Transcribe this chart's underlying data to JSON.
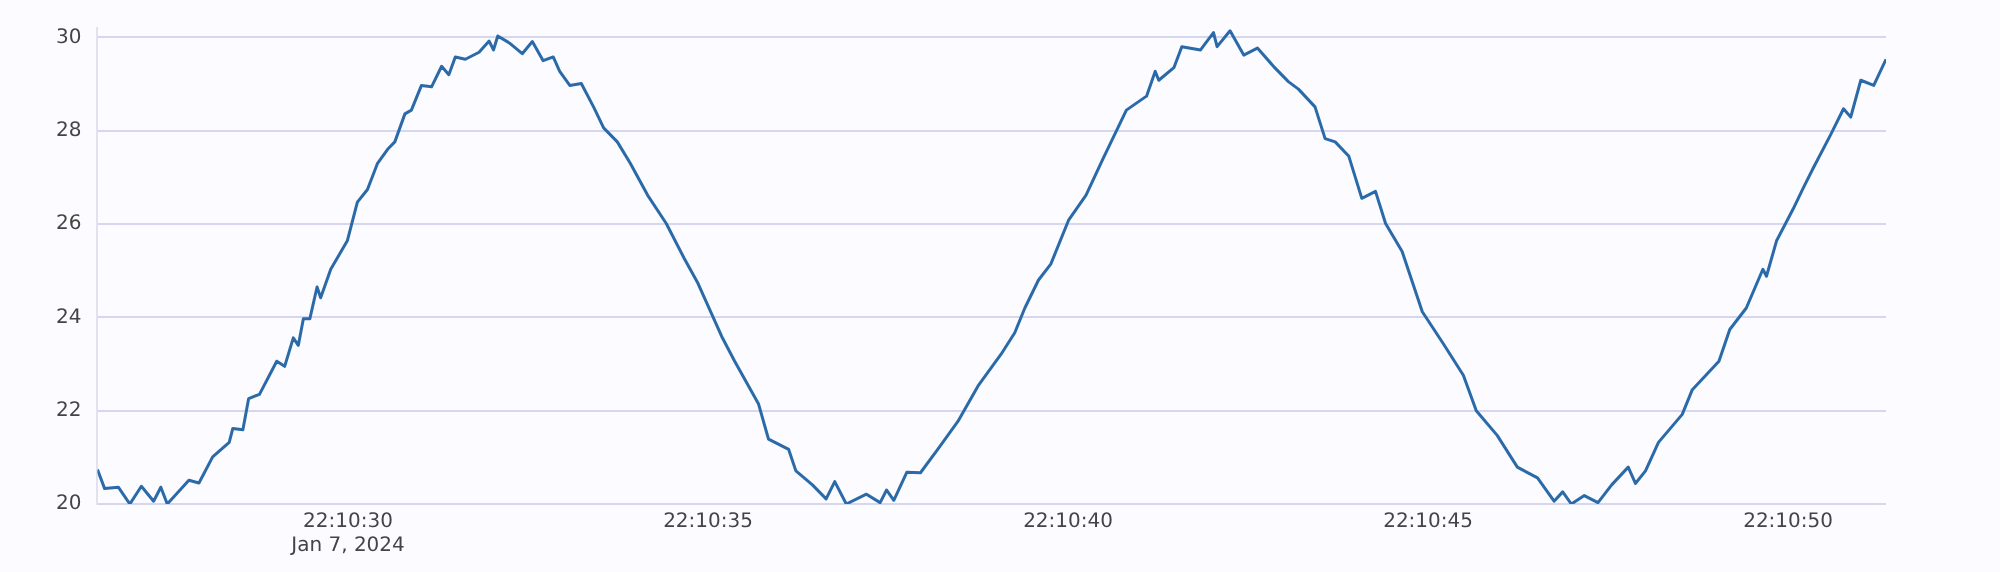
{
  "chart_data": {
    "type": "line",
    "grid": "y",
    "line_style": "solid",
    "marker": "none",
    "legend": false,
    "xlim": [
      "2024-01-07T22:10:26.52",
      "2024-01-07T22:10:51.36"
    ],
    "xticks": [
      {
        "value": "2024-01-07T22:10:30",
        "label": "22:10:30\nJan 7, 2024"
      },
      {
        "value": "2024-01-07T22:10:35",
        "label": "22:10:35"
      },
      {
        "value": "2024-01-07T22:10:40",
        "label": "22:10:40"
      },
      {
        "value": "2024-01-07T22:10:45",
        "label": "22:10:45"
      },
      {
        "value": "2024-01-07T22:10:50",
        "label": "22:10:50"
      }
    ],
    "ylim": [
      20,
      30.2
    ],
    "yticks": [
      20,
      22,
      24,
      26,
      28,
      30
    ],
    "x": [
      "2024-01-07T22:10:26.52",
      "2024-01-07T22:10:26.62",
      "2024-01-07T22:10:26.81",
      "2024-01-07T22:10:26.97",
      "2024-01-07T22:10:27.13",
      "2024-01-07T22:10:27.30",
      "2024-01-07T22:10:27.40",
      "2024-01-07T22:10:27.49",
      "2024-01-07T22:10:27.79",
      "2024-01-07T22:10:27.93",
      "2024-01-07T22:10:28.12",
      "2024-01-07T22:10:28.35",
      "2024-01-07T22:10:28.40",
      "2024-01-07T22:10:28.54",
      "2024-01-07T22:10:28.62",
      "2024-01-07T22:10:28.77",
      "2024-01-07T22:10:29.01",
      "2024-01-07T22:10:29.12",
      "2024-01-07T22:10:29.24",
      "2024-01-07T22:10:29.31",
      "2024-01-07T22:10:29.38",
      "2024-01-07T22:10:29.47",
      "2024-01-07T22:10:29.57",
      "2024-01-07T22:10:29.62",
      "2024-01-07T22:10:29.76",
      "2024-01-07T22:10:29.99",
      "2024-01-07T22:10:30.13",
      "2024-01-07T22:10:30.27",
      "2024-01-07T22:10:30.41",
      "2024-01-07T22:10:30.55",
      "2024-01-07T22:10:30.65",
      "2024-01-07T22:10:30.79",
      "2024-01-07T22:10:30.88",
      "2024-01-07T22:10:31.02",
      "2024-01-07T22:10:31.16",
      "2024-01-07T22:10:31.30",
      "2024-01-07T22:10:31.40",
      "2024-01-07T22:10:31.49",
      "2024-01-07T22:10:31.63",
      "2024-01-07T22:10:31.82",
      "2024-01-07T22:10:31.96",
      "2024-01-07T22:10:32.02",
      "2024-01-07T22:10:32.08",
      "2024-01-07T22:10:32.24",
      "2024-01-07T22:10:32.42",
      "2024-01-07T22:10:32.56",
      "2024-01-07T22:10:32.71",
      "2024-01-07T22:10:32.85",
      "2024-01-07T22:10:32.94",
      "2024-01-07T22:10:33.08",
      "2024-01-07T22:10:33.24",
      "2024-01-07T22:10:33.41",
      "2024-01-07T22:10:33.55",
      "2024-01-07T22:10:33.74",
      "2024-01-07T22:10:33.92",
      "2024-01-07T22:10:34.16",
      "2024-01-07T22:10:34.42",
      "2024-01-07T22:10:34.67",
      "2024-01-07T22:10:34.86",
      "2024-01-07T22:10:35.19",
      "2024-01-07T22:10:35.37",
      "2024-01-07T22:10:35.70",
      "2024-01-07T22:10:35.84",
      "2024-01-07T22:10:36.12",
      "2024-01-07T22:10:36.22",
      "2024-01-07T22:10:36.45",
      "2024-01-07T22:10:36.64",
      "2024-01-07T22:10:36.76",
      "2024-01-07T22:10:36.92",
      "2024-01-07T22:10:37.20",
      "2024-01-07T22:10:37.39",
      "2024-01-07T22:10:37.48",
      "2024-01-07T22:10:37.58",
      "2024-01-07T22:10:37.76",
      "2024-01-07T22:10:37.95",
      "2024-01-07T22:10:38.19",
      "2024-01-07T22:10:38.47",
      "2024-01-07T22:10:38.75",
      "2024-01-07T22:10:39.07",
      "2024-01-07T22:10:39.26",
      "2024-01-07T22:10:39.40",
      "2024-01-07T22:10:39.59",
      "2024-01-07T22:10:39.76",
      "2024-01-07T22:10:40.01",
      "2024-01-07T22:10:40.25",
      "2024-01-07T22:10:40.48",
      "2024-01-07T22:10:40.67",
      "2024-01-07T22:10:40.81",
      "2024-01-07T22:10:41.09",
      "2024-01-07T22:10:41.21",
      "2024-01-07T22:10:41.26",
      "2024-01-07T22:10:41.47",
      "2024-01-07T22:10:41.58",
      "2024-01-07T22:10:41.84",
      "2024-01-07T22:10:42.02",
      "2024-01-07T22:10:42.07",
      "2024-01-07T22:10:42.25",
      "2024-01-07T22:10:42.44",
      "2024-01-07T22:10:42.63",
      "2024-01-07T22:10:42.87",
      "2024-01-07T22:10:43.06",
      "2024-01-07T22:10:43.20",
      "2024-01-07T22:10:43.43",
      "2024-01-07T22:10:43.57",
      "2024-01-07T22:10:43.71",
      "2024-01-07T22:10:43.90",
      "2024-01-07T22:10:44.08",
      "2024-01-07T22:10:44.27",
      "2024-01-07T22:10:44.41",
      "2024-01-07T22:10:44.64",
      "2024-01-07T22:10:44.92",
      "2024-01-07T22:10:45.21",
      "2024-01-07T22:10:45.49",
      "2024-01-07T22:10:45.67",
      "2024-01-07T22:10:45.96",
      "2024-01-07T22:10:46.24",
      "2024-01-07T22:10:46.52",
      "2024-01-07T22:10:46.75",
      "2024-01-07T22:10:46.87",
      "2024-01-07T22:10:46.99",
      "2024-01-07T22:10:47.17",
      "2024-01-07T22:10:47.36",
      "2024-01-07T22:10:47.55",
      "2024-01-07T22:10:47.78",
      "2024-01-07T22:10:47.88",
      "2024-01-07T22:10:48.02",
      "2024-01-07T22:10:48.20",
      "2024-01-07T22:10:48.53",
      "2024-01-07T22:10:48.67",
      "2024-01-07T22:10:49.04",
      "2024-01-07T22:10:49.19",
      "2024-01-07T22:10:49.42",
      "2024-01-07T22:10:49.65",
      "2024-01-07T22:10:49.70",
      "2024-01-07T22:10:49.84",
      "2024-01-07T22:10:50.07",
      "2024-01-07T22:10:50.21",
      "2024-01-07T22:10:50.35",
      "2024-01-07T22:10:50.59",
      "2024-01-07T22:10:50.77",
      "2024-01-07T22:10:50.87",
      "2024-01-07T22:10:51.01",
      "2024-01-07T22:10:51.19",
      "2024-01-07T22:10:51.36"
    ],
    "series": [
      {
        "color": "#2a6aa8",
        "values": [
          20.74,
          20.33,
          20.36,
          20.0,
          20.38,
          20.06,
          20.36,
          20.0,
          20.51,
          20.45,
          21.01,
          21.32,
          21.62,
          21.59,
          22.26,
          22.35,
          23.06,
          22.95,
          23.56,
          23.4,
          23.97,
          23.97,
          24.65,
          24.42,
          25.03,
          25.64,
          26.47,
          26.74,
          27.3,
          27.6,
          27.76,
          28.36,
          28.44,
          28.97,
          28.94,
          29.38,
          29.2,
          29.58,
          29.53,
          29.68,
          29.92,
          29.73,
          30.03,
          29.88,
          29.65,
          29.91,
          29.5,
          29.58,
          29.27,
          28.97,
          29.01,
          28.51,
          28.06,
          27.76,
          27.3,
          26.62,
          26.01,
          25.26,
          24.73,
          23.59,
          23.06,
          22.15,
          21.39,
          21.17,
          20.71,
          20.41,
          20.11,
          20.48,
          20.0,
          20.21,
          20.03,
          20.3,
          20.08,
          20.68,
          20.67,
          21.17,
          21.77,
          22.53,
          23.21,
          23.67,
          24.2,
          24.8,
          25.14,
          26.09,
          26.62,
          27.38,
          27.99,
          28.44,
          28.74,
          29.27,
          29.08,
          29.35,
          29.8,
          29.73,
          30.1,
          29.8,
          30.14,
          29.62,
          29.77,
          29.35,
          29.05,
          28.89,
          28.51,
          27.83,
          27.76,
          27.45,
          26.55,
          26.7,
          26.01,
          25.41,
          24.12,
          23.44,
          22.76,
          22.0,
          21.47,
          20.79,
          20.56,
          20.06,
          20.26,
          20.0,
          20.18,
          20.03,
          20.41,
          20.79,
          20.44,
          20.71,
          21.32,
          21.92,
          22.45,
          23.06,
          23.74,
          24.2,
          25.03,
          24.88,
          25.64,
          26.32,
          26.77,
          27.2,
          27.91,
          28.47,
          28.29,
          29.08,
          28.97,
          29.53
        ]
      }
    ]
  }
}
